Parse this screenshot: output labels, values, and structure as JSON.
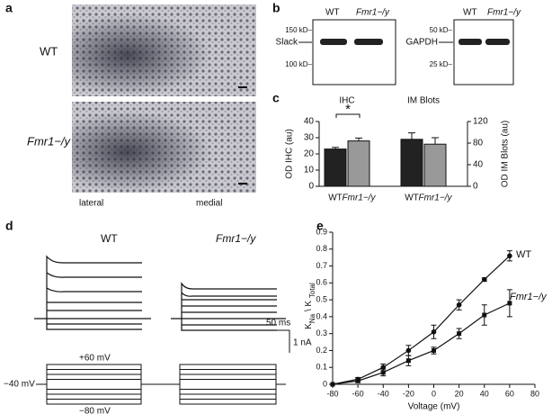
{
  "panel_labels": [
    "a",
    "b",
    "c",
    "d",
    "e"
  ],
  "panel_a": {
    "rows": [
      "WT",
      "Fmr1−/y"
    ],
    "x_labels": [
      "lateral",
      "medial"
    ]
  },
  "panel_b": {
    "genotypes": [
      "WT",
      "Fmr1−/y"
    ],
    "blots": [
      {
        "name": "Slack",
        "markers": [
          "150 kD–",
          "100 kD–"
        ]
      },
      {
        "name": "GAPDH",
        "markers": [
          "50 kD–",
          "25 kD–"
        ]
      }
    ]
  },
  "panel_d": {
    "genotypes": [
      "WT",
      "Fmr1−/y"
    ],
    "scale_time": "50 ms",
    "scale_current": "1 nA",
    "holding": "−40 mV",
    "step_high": "+60 mV",
    "step_low": "−80 mV"
  },
  "chart_data": [
    {
      "type": "bar",
      "categories": [
        "WT",
        "Fmr1−/y"
      ],
      "colors": [
        "#222222",
        "#999999"
      ],
      "ylabel": "OD IHC (au)",
      "y2label": "OD IM Blots (au)",
      "ylim": [
        0,
        40
      ],
      "yticks": [
        0,
        10,
        20,
        30,
        40
      ],
      "y2lim": [
        0,
        120
      ],
      "y2ticks": [
        0,
        40,
        80,
        120
      ],
      "annotation": "*",
      "series": [
        {
          "name": "IHC",
          "values": [
            23,
            28
          ],
          "errors": [
            1,
            1.8
          ]
        },
        {
          "name": "IM Blots",
          "axis": "y2",
          "values": [
            87,
            78
          ],
          "errors": [
            12,
            12
          ]
        }
      ]
    },
    {
      "type": "line",
      "xlabel": "Voltage (mV)",
      "ylabel_parts": [
        "K",
        "Na",
        " \\ K ",
        "Total"
      ],
      "x": [
        -80,
        -60,
        -40,
        -20,
        0,
        20,
        40,
        60
      ],
      "xlim": [
        -80,
        80
      ],
      "xticks": [
        -80,
        -60,
        -40,
        -20,
        0,
        20,
        40,
        60,
        80
      ],
      "ylim": [
        0,
        0.9
      ],
      "yticks": [
        0,
        0.1,
        0.2,
        0.3,
        0.4,
        0.5,
        0.6,
        0.7,
        0.8,
        0.9
      ],
      "series": [
        {
          "name": "WT",
          "color": "#111111",
          "marker": "circle",
          "values": [
            0,
            0.03,
            0.1,
            0.2,
            0.31,
            0.47,
            0.62,
            0.76
          ],
          "errors": [
            0,
            0.01,
            0.02,
            0.03,
            0.04,
            0.03,
            0.01,
            0.03
          ]
        },
        {
          "name": "Fmr1−/y",
          "color": "#111111",
          "marker": "square",
          "values": [
            0,
            0.02,
            0.07,
            0.14,
            0.2,
            0.3,
            0.41,
            0.48
          ],
          "errors": [
            0,
            0.01,
            0.02,
            0.03,
            0.02,
            0.03,
            0.06,
            0.08
          ]
        }
      ]
    }
  ]
}
